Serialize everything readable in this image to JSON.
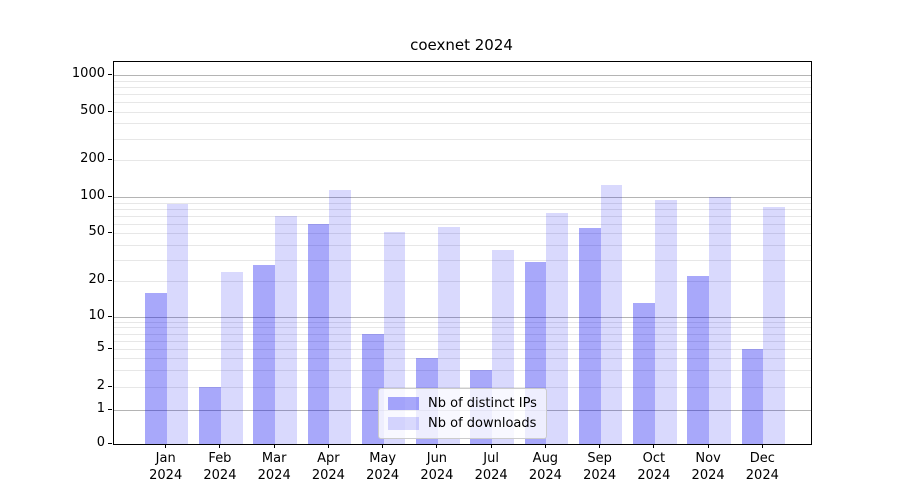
{
  "chart_data": {
    "type": "bar",
    "title": "coexnet 2024",
    "categories": [
      "Jan 2024",
      "Feb 2024",
      "Mar 2024",
      "Apr 2024",
      "May 2024",
      "Jun 2024",
      "Jul 2024",
      "Aug 2024",
      "Sep 2024",
      "Oct 2024",
      "Nov 2024",
      "Dec 2024"
    ],
    "x_tick_months": [
      "Jan",
      "Feb",
      "Mar",
      "Apr",
      "May",
      "Jun",
      "Jul",
      "Aug",
      "Sep",
      "Oct",
      "Nov",
      "Dec"
    ],
    "x_tick_year": "2024",
    "series": [
      {
        "name": "Nb of distinct IPs",
        "color": "rgba(0,0,240,0.34)",
        "values": [
          16,
          2,
          27,
          60,
          7,
          4,
          3,
          29,
          55,
          13,
          22,
          5
        ]
      },
      {
        "name": "Nb of downloads",
        "color": "rgba(0,0,240,0.15)",
        "values": [
          87,
          24,
          70,
          113,
          51,
          56,
          36,
          74,
          125,
          95,
          101,
          83
        ]
      }
    ],
    "y_axis": {
      "scale": "symlog",
      "tick_labels": [
        "0",
        "1",
        "2",
        "5",
        "10",
        "20",
        "50",
        "100",
        "200",
        "500",
        "1000"
      ],
      "tick_values": [
        0,
        1,
        2,
        5,
        10,
        20,
        50,
        100,
        200,
        500,
        1000
      ],
      "major_grid_values": [
        1,
        10,
        100,
        1000
      ],
      "minor_grid_values": [
        2,
        3,
        4,
        5,
        6,
        7,
        8,
        9,
        20,
        30,
        40,
        50,
        60,
        70,
        80,
        90,
        200,
        300,
        400,
        500,
        600,
        700,
        800,
        900
      ],
      "ylim": [
        0,
        1300
      ]
    },
    "legend": {
      "position": "lower center",
      "entries": [
        "Nb of distinct IPs",
        "Nb of downloads"
      ]
    },
    "grid": true
  },
  "colors": {
    "major_grid": "#b4b4b4",
    "minor_grid": "#e7e7e7",
    "spine": "#000000",
    "text": "#000000",
    "bar_dark": "rgba(0,0,240,0.34)",
    "bar_light": "rgba(0,0,240,0.15)"
  }
}
